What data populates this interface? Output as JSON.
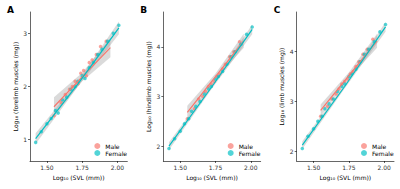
{
  "chart_data": [
    {
      "type": "scatter",
      "title": "A",
      "x_label": "Log₁₀ (SVL (mm))",
      "y_label": "Log₁₀ (forelimb muscles (mg))",
      "xlim": [
        1.38,
        2.07
      ],
      "xticks": [
        {
          "value": 1.5,
          "label": "1.50"
        },
        {
          "value": 1.75,
          "label": "1.75"
        },
        {
          "value": 2.0,
          "label": "2.00"
        }
      ],
      "ylim": [
        0.6,
        3.4
      ],
      "yticks": [
        1,
        2,
        3
      ],
      "grid": false,
      "legend": "lower right",
      "series": [
        {
          "name": "Male",
          "color": "#F8766D",
          "marker": "circle",
          "x": [
            1.55,
            1.6,
            1.63,
            1.66,
            1.68,
            1.7,
            1.72,
            1.74,
            1.76,
            1.78,
            1.8,
            1.82,
            1.85,
            1.88,
            1.92
          ],
          "values": [
            1.45,
            1.7,
            1.85,
            1.95,
            2.0,
            2.1,
            2.05,
            2.25,
            2.3,
            2.2,
            2.45,
            2.5,
            2.6,
            2.75,
            2.85
          ],
          "fit": {
            "x": [
              1.55,
              1.75,
              1.95
            ],
            "values": [
              1.62,
              2.18,
              2.73
            ],
            "ci_lower": [
              1.45,
              2.1,
              2.55
            ],
            "ci_upper": [
              1.8,
              2.26,
              2.91
            ]
          }
        },
        {
          "name": "Female",
          "color": "#00BFC4",
          "marker": "circle",
          "x": [
            1.42,
            1.46,
            1.5,
            1.53,
            1.56,
            1.58,
            1.61,
            1.64,
            1.67,
            1.7,
            1.72,
            1.75,
            1.77,
            1.8,
            1.83,
            1.86,
            1.89,
            1.93,
            1.97,
            2.01
          ],
          "values": [
            0.95,
            1.15,
            1.3,
            1.4,
            1.55,
            1.5,
            1.75,
            1.8,
            1.95,
            2.0,
            2.1,
            2.2,
            2.15,
            2.35,
            2.45,
            2.6,
            2.7,
            2.85,
            3.0,
            3.15
          ],
          "fit": {
            "x": [
              1.42,
              1.72,
              2.01
            ],
            "values": [
              1.02,
              2.05,
              3.1
            ],
            "ci_lower": [
              0.92,
              2.0,
              2.98
            ],
            "ci_upper": [
              1.12,
              2.1,
              3.22
            ]
          }
        }
      ]
    },
    {
      "type": "scatter",
      "title": "B",
      "x_label": "Log₁₀ (SVL (mm))",
      "y_label": "Log₁₀ (hindlimb muscles (mg))",
      "xlim": [
        1.38,
        2.07
      ],
      "xticks": [
        {
          "value": 1.5,
          "label": "1.50"
        },
        {
          "value": 1.75,
          "label": "1.75"
        },
        {
          "value": 2.0,
          "label": "2.00"
        }
      ],
      "ylim": [
        1.7,
        4.7
      ],
      "yticks": [
        2,
        3,
        4
      ],
      "grid": false,
      "legend": "lower right",
      "series": [
        {
          "name": "Male",
          "color": "#F8766D",
          "marker": "circle",
          "x": [
            1.55,
            1.6,
            1.63,
            1.66,
            1.68,
            1.7,
            1.72,
            1.74,
            1.76,
            1.78,
            1.8,
            1.82,
            1.85,
            1.88,
            1.92
          ],
          "values": [
            2.55,
            2.75,
            2.95,
            3.0,
            3.1,
            3.2,
            3.25,
            3.3,
            3.4,
            3.45,
            3.55,
            3.65,
            3.8,
            3.9,
            4.1
          ],
          "fit": {
            "x": [
              1.55,
              1.75,
              1.95
            ],
            "values": [
              2.68,
              3.4,
              4.12
            ],
            "ci_lower": [
              2.55,
              3.34,
              3.98
            ],
            "ci_upper": [
              2.81,
              3.46,
              4.26
            ]
          }
        },
        {
          "name": "Female",
          "color": "#00BFC4",
          "marker": "circle",
          "x": [
            1.42,
            1.46,
            1.5,
            1.53,
            1.56,
            1.58,
            1.61,
            1.64,
            1.67,
            1.7,
            1.72,
            1.75,
            1.77,
            1.8,
            1.83,
            1.86,
            1.89,
            1.93,
            1.97,
            2.01
          ],
          "values": [
            1.95,
            2.15,
            2.3,
            2.45,
            2.55,
            2.7,
            2.8,
            2.9,
            3.05,
            3.15,
            3.2,
            3.35,
            3.4,
            3.5,
            3.65,
            3.8,
            3.9,
            4.05,
            4.25,
            4.4
          ],
          "fit": {
            "x": [
              1.42,
              1.72,
              2.01
            ],
            "values": [
              2.0,
              3.18,
              4.35
            ],
            "ci_lower": [
              1.92,
              3.14,
              4.25
            ],
            "ci_upper": [
              2.08,
              3.22,
              4.45
            ]
          }
        }
      ]
    },
    {
      "type": "scatter",
      "title": "C",
      "x_label": "Log₁₀ (SVL (mm))",
      "y_label": "Log₁₀ (limb muscles (mg))",
      "xlim": [
        1.38,
        2.07
      ],
      "xticks": [
        {
          "value": 1.5,
          "label": "1.50"
        },
        {
          "value": 1.75,
          "label": "1.75"
        },
        {
          "value": 2.0,
          "label": "2.00"
        }
      ],
      "ylim": [
        1.8,
        4.8
      ],
      "yticks": [
        2,
        3,
        4
      ],
      "grid": false,
      "legend": "lower right",
      "series": [
        {
          "name": "Male",
          "color": "#F8766D",
          "marker": "circle",
          "x": [
            1.55,
            1.6,
            1.63,
            1.66,
            1.68,
            1.7,
            1.72,
            1.74,
            1.76,
            1.78,
            1.8,
            1.82,
            1.85,
            1.88,
            1.92
          ],
          "values": [
            2.7,
            2.9,
            3.05,
            3.15,
            3.25,
            3.35,
            3.4,
            3.45,
            3.55,
            3.6,
            3.7,
            3.8,
            3.95,
            4.05,
            4.25
          ],
          "fit": {
            "x": [
              1.55,
              1.75,
              1.95
            ],
            "values": [
              2.82,
              3.52,
              4.22
            ],
            "ci_lower": [
              2.7,
              3.46,
              4.08
            ],
            "ci_upper": [
              2.94,
              3.58,
              4.36
            ]
          }
        },
        {
          "name": "Female",
          "color": "#00BFC4",
          "marker": "circle",
          "x": [
            1.42,
            1.46,
            1.5,
            1.53,
            1.56,
            1.58,
            1.61,
            1.64,
            1.67,
            1.7,
            1.72,
            1.75,
            1.77,
            1.8,
            1.83,
            1.86,
            1.89,
            1.93,
            1.97,
            2.01
          ],
          "values": [
            2.05,
            2.3,
            2.45,
            2.6,
            2.7,
            2.85,
            2.95,
            3.05,
            3.2,
            3.3,
            3.35,
            3.5,
            3.55,
            3.65,
            3.8,
            3.95,
            4.05,
            4.2,
            4.4,
            4.55
          ],
          "fit": {
            "x": [
              1.42,
              1.72,
              2.01
            ],
            "values": [
              2.12,
              3.3,
              4.5
            ],
            "ci_lower": [
              2.04,
              3.26,
              4.4
            ],
            "ci_upper": [
              2.2,
              3.34,
              4.6
            ]
          }
        }
      ]
    }
  ]
}
